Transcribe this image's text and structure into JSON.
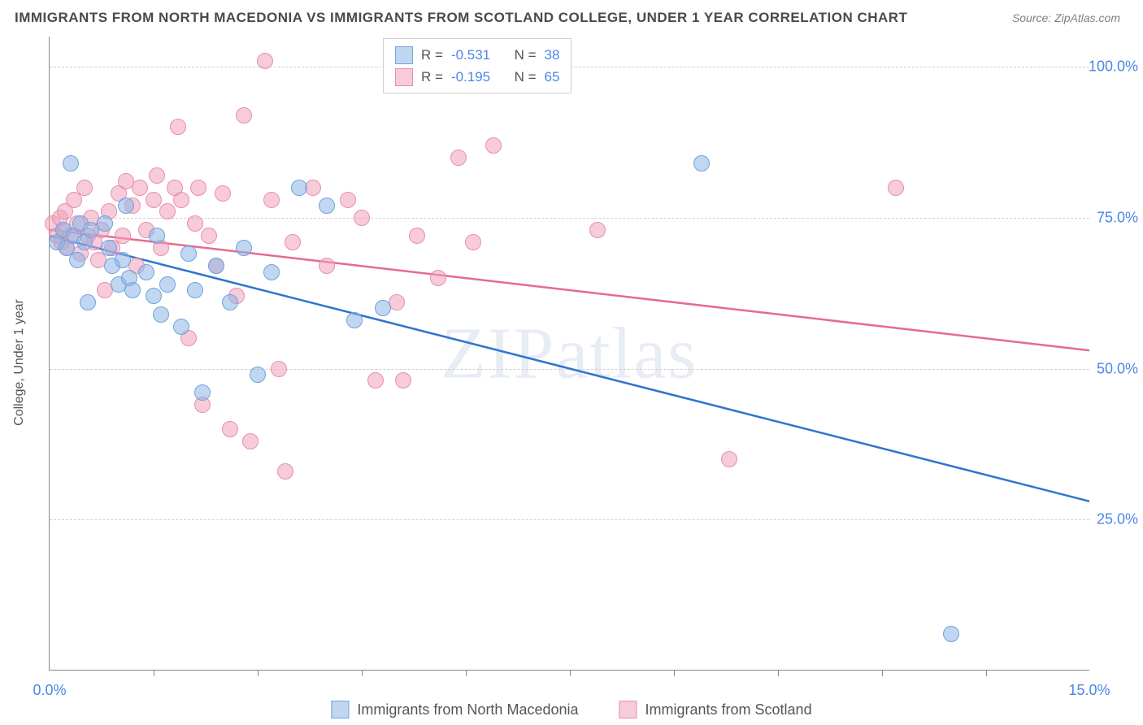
{
  "title": "IMMIGRANTS FROM NORTH MACEDONIA VS IMMIGRANTS FROM SCOTLAND COLLEGE, UNDER 1 YEAR CORRELATION CHART",
  "source": "Source: ZipAtlas.com",
  "ylabel": "College, Under 1 year",
  "watermark": "ZIPatlas",
  "chart": {
    "type": "scatter",
    "xlim": [
      0,
      15
    ],
    "ylim": [
      0,
      105
    ],
    "background_color": "#ffffff",
    "grid_color": "#d0d0d0",
    "grid_dash": "4,4",
    "axis_color": "#888888",
    "tick_label_color": "#4a86e8",
    "tick_fontsize": 18,
    "ylabel_fontsize": 16,
    "yticks": [
      25,
      50,
      75,
      100
    ],
    "ytick_labels": [
      "25.0%",
      "50.0%",
      "75.0%",
      "100.0%"
    ],
    "xtick_label_min": "0.0%",
    "xtick_label_max": "15.0%",
    "xtick_positions": [
      1.5,
      3.0,
      4.5,
      6.0,
      7.5,
      9.0,
      10.5,
      12.0,
      13.5
    ],
    "marker_radius": 10,
    "marker_stroke_width": 1,
    "line_width": 2.5
  },
  "series": {
    "a": {
      "label": "Immigrants from North Macedonia",
      "fill": "rgba(140,180,230,0.55)",
      "stroke": "#6fa4dd",
      "line_color": "#2e74d0",
      "R": "-0.531",
      "N": "38",
      "trend": {
        "x1": 0,
        "y1": 72,
        "x2": 15,
        "y2": 28
      },
      "points": [
        [
          0.1,
          71
        ],
        [
          0.2,
          73
        ],
        [
          0.25,
          70
        ],
        [
          0.3,
          84
        ],
        [
          0.35,
          72
        ],
        [
          0.4,
          68
        ],
        [
          0.45,
          74
        ],
        [
          0.5,
          71
        ],
        [
          0.55,
          61
        ],
        [
          0.6,
          73
        ],
        [
          0.8,
          74
        ],
        [
          0.85,
          70
        ],
        [
          0.9,
          67
        ],
        [
          1.0,
          64
        ],
        [
          1.05,
          68
        ],
        [
          1.1,
          77
        ],
        [
          1.15,
          65
        ],
        [
          1.2,
          63
        ],
        [
          1.4,
          66
        ],
        [
          1.5,
          62
        ],
        [
          1.55,
          72
        ],
        [
          1.6,
          59
        ],
        [
          1.7,
          64
        ],
        [
          1.9,
          57
        ],
        [
          2.0,
          69
        ],
        [
          2.1,
          63
        ],
        [
          2.2,
          46
        ],
        [
          2.4,
          67
        ],
        [
          2.6,
          61
        ],
        [
          2.8,
          70
        ],
        [
          3.0,
          49
        ],
        [
          3.2,
          66
        ],
        [
          3.6,
          80
        ],
        [
          4.0,
          77
        ],
        [
          4.4,
          58
        ],
        [
          4.8,
          60
        ],
        [
          9.4,
          84
        ],
        [
          13.0,
          6
        ]
      ]
    },
    "b": {
      "label": "Immigrants from Scotland",
      "fill": "rgba(240,160,185,0.55)",
      "stroke": "#e98fab",
      "line_color": "#e76a8f",
      "R": "-0.195",
      "N": "65",
      "trend": {
        "x1": 0,
        "y1": 73,
        "x2": 15,
        "y2": 53
      },
      "points": [
        [
          0.05,
          74
        ],
        [
          0.1,
          72
        ],
        [
          0.15,
          75
        ],
        [
          0.18,
          71
        ],
        [
          0.2,
          73
        ],
        [
          0.22,
          76
        ],
        [
          0.25,
          70
        ],
        [
          0.3,
          72
        ],
        [
          0.35,
          78
        ],
        [
          0.4,
          74
        ],
        [
          0.45,
          69
        ],
        [
          0.5,
          80
        ],
        [
          0.55,
          72
        ],
        [
          0.6,
          75
        ],
        [
          0.65,
          71
        ],
        [
          0.7,
          68
        ],
        [
          0.75,
          73
        ],
        [
          0.8,
          63
        ],
        [
          0.85,
          76
        ],
        [
          0.9,
          70
        ],
        [
          1.0,
          79
        ],
        [
          1.05,
          72
        ],
        [
          1.1,
          81
        ],
        [
          1.2,
          77
        ],
        [
          1.25,
          67
        ],
        [
          1.3,
          80
        ],
        [
          1.4,
          73
        ],
        [
          1.5,
          78
        ],
        [
          1.55,
          82
        ],
        [
          1.6,
          70
        ],
        [
          1.7,
          76
        ],
        [
          1.8,
          80
        ],
        [
          1.85,
          90
        ],
        [
          1.9,
          78
        ],
        [
          2.0,
          55
        ],
        [
          2.1,
          74
        ],
        [
          2.15,
          80
        ],
        [
          2.2,
          44
        ],
        [
          2.3,
          72
        ],
        [
          2.4,
          67
        ],
        [
          2.5,
          79
        ],
        [
          2.6,
          40
        ],
        [
          2.7,
          62
        ],
        [
          2.8,
          92
        ],
        [
          2.9,
          38
        ],
        [
          3.1,
          101
        ],
        [
          3.2,
          78
        ],
        [
          3.3,
          50
        ],
        [
          3.4,
          33
        ],
        [
          3.5,
          71
        ],
        [
          3.8,
          80
        ],
        [
          4.0,
          67
        ],
        [
          4.3,
          78
        ],
        [
          4.5,
          75
        ],
        [
          4.7,
          48
        ],
        [
          5.0,
          61
        ],
        [
          5.3,
          72
        ],
        [
          5.6,
          65
        ],
        [
          5.9,
          85
        ],
        [
          6.1,
          71
        ],
        [
          6.4,
          87
        ],
        [
          7.9,
          73
        ],
        [
          9.8,
          35
        ],
        [
          12.2,
          80
        ],
        [
          5.1,
          48
        ]
      ]
    }
  },
  "legend_top": {
    "R_label": "R =",
    "N_label": "N ="
  }
}
